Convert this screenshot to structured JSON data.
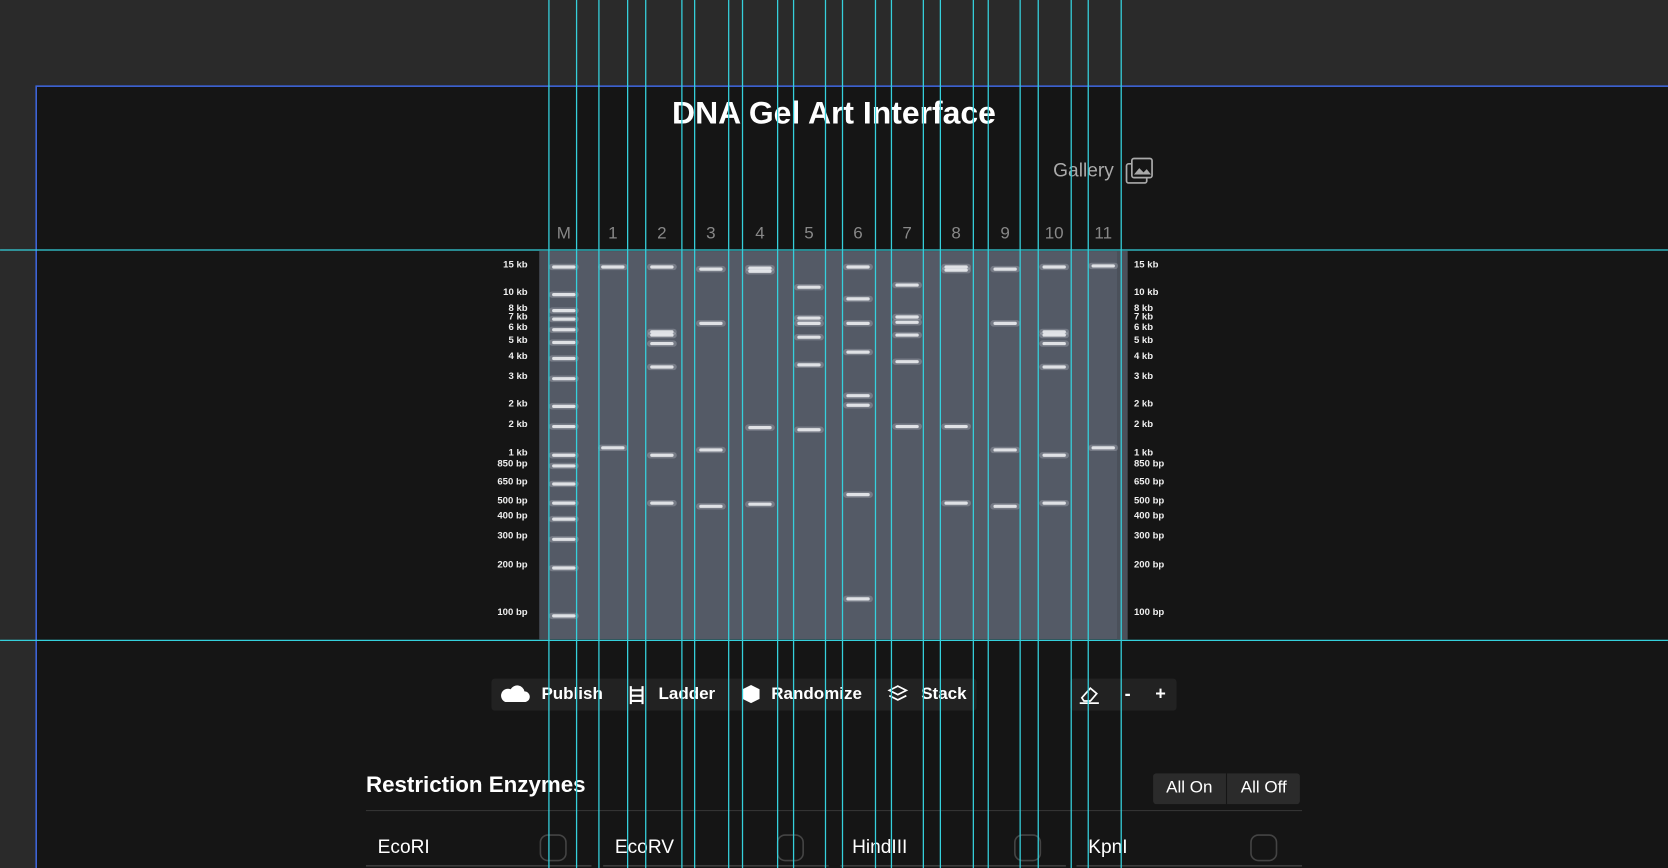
{
  "header": {
    "title": "DNA Gel Art Interface",
    "gallery": "Gallery"
  },
  "gel": {
    "lanes": [
      "M",
      "1",
      "2",
      "3",
      "4",
      "5",
      "6",
      "7",
      "8",
      "9",
      "10",
      "11"
    ],
    "ladder": [
      "15 kb",
      "10 kb",
      "8 kb",
      "7 kb",
      "6 kb",
      "5 kb",
      "4 kb",
      "3 kb",
      "2 kb",
      "2 kb",
      "1 kb",
      "850 bp",
      "650 bp",
      "500 bp",
      "400 bp",
      "300 bp",
      "200 bp",
      "100 bp"
    ]
  },
  "toolbar": {
    "buttons": [
      "Publish",
      "Ladder",
      "Randomize",
      "Stack"
    ],
    "zoom_out": "-",
    "zoom_in": "+"
  },
  "enzymes": {
    "title": "Restriction Enzymes",
    "all_on": "All On",
    "all_off": "All Off",
    "items": [
      "EcoRI",
      "EcoRV",
      "HindIII",
      "KpnI"
    ]
  }
}
